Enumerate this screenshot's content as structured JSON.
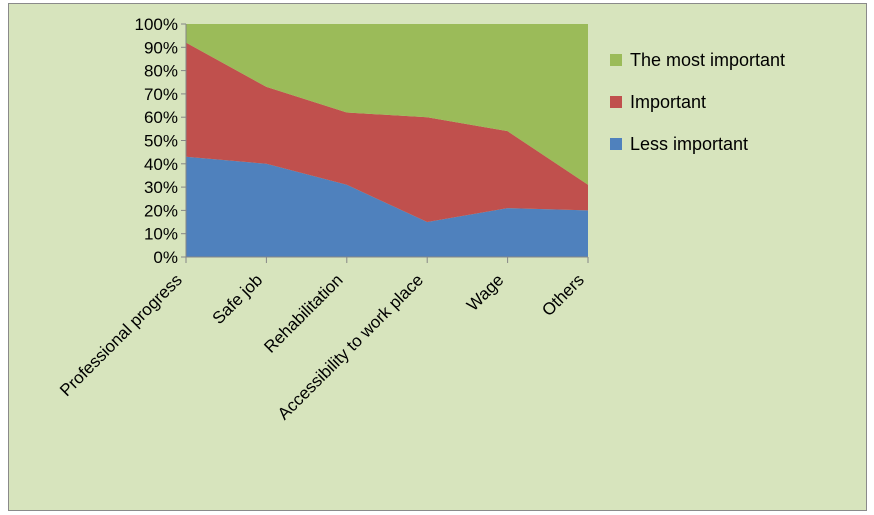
{
  "chart_data": {
    "type": "area",
    "stacked": "percent",
    "categories": [
      "Professional progress",
      "Safe job",
      "Rehabilitation",
      "Accessibility to work place",
      "Wage",
      "Others"
    ],
    "series": [
      {
        "name": "Less important",
        "color": "#4f81bd",
        "values": [
          43,
          40,
          31,
          15,
          21,
          20
        ]
      },
      {
        "name": "Important",
        "color": "#c0504d",
        "values": [
          49,
          33,
          31,
          45,
          33,
          11
        ]
      },
      {
        "name": "The most important",
        "color": "#9bbb59",
        "values": [
          8,
          27,
          38,
          40,
          46,
          69
        ]
      }
    ],
    "y_ticks": [
      "0%",
      "10%",
      "20%",
      "30%",
      "40%",
      "50%",
      "60%",
      "70%",
      "80%",
      "90%",
      "100%"
    ],
    "ylim": [
      0,
      100
    ],
    "legend_position": "right",
    "legend_order": [
      "The most important",
      "Important",
      "Less important"
    ],
    "grid": false,
    "background_color": "#d7e4bd"
  }
}
